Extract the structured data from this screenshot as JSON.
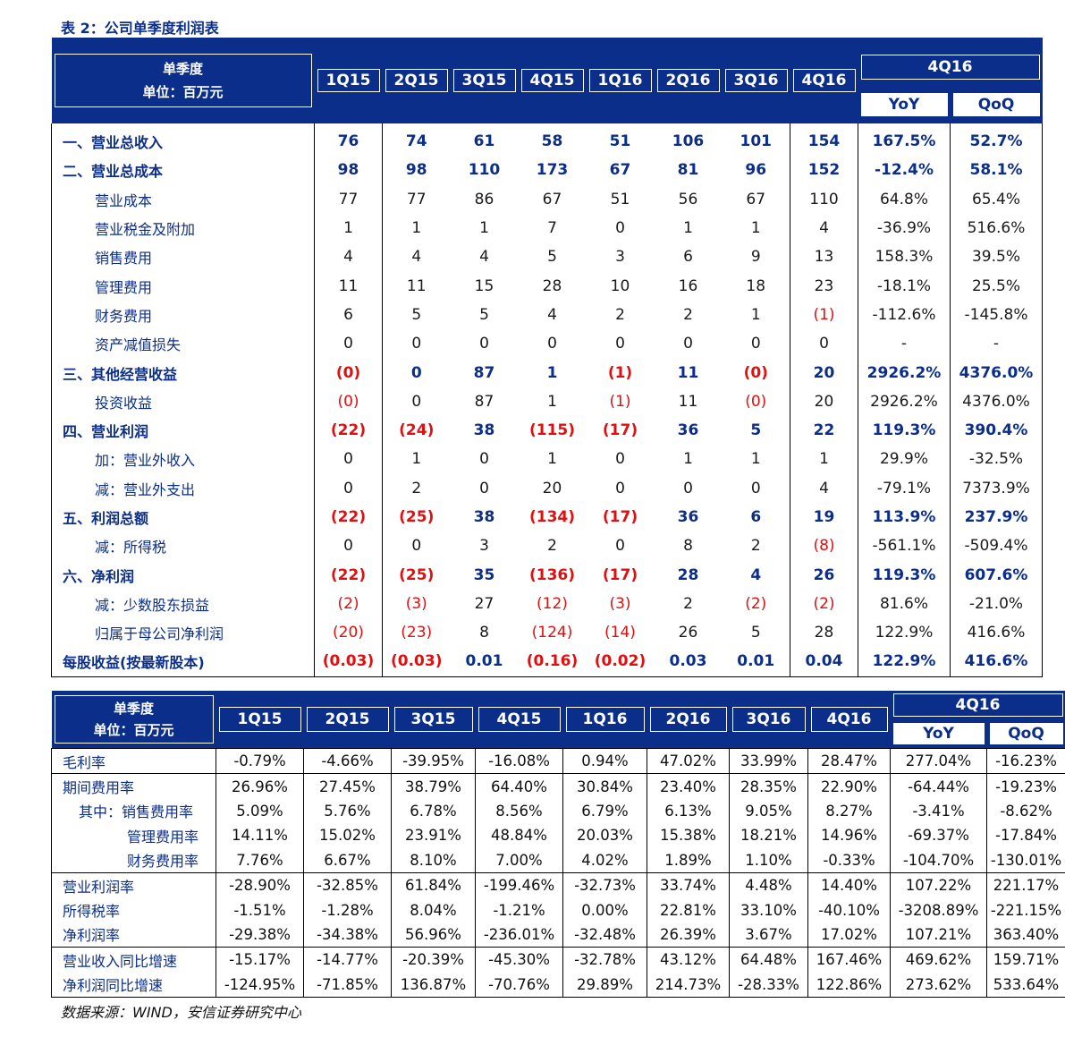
{
  "caption": "表 2：公司单季度利润表",
  "source": "数据来源：WIND，安信证券研究中心",
  "table1": {
    "header": {
      "label_line1": "单季度",
      "label_line2": "单位：百万元",
      "quarters": [
        "1Q15",
        "2Q15",
        "3Q15",
        "4Q15",
        "1Q16",
        "2Q16",
        "3Q16",
        "4Q16"
      ],
      "group": "4Q16",
      "yoy": "YoY",
      "qoq": "QoQ"
    },
    "rows": [
      {
        "label": "一、营业总收入",
        "bold": true,
        "indent": false,
        "values": [
          "76",
          "74",
          "61",
          "58",
          "51",
          "106",
          "101",
          "154"
        ],
        "yoy": "167.5%",
        "qoq": "52.7%"
      },
      {
        "label": "二、营业总成本",
        "bold": true,
        "indent": false,
        "values": [
          "98",
          "98",
          "110",
          "173",
          "67",
          "81",
          "96",
          "152"
        ],
        "yoy": "-12.4%",
        "qoq": "58.1%"
      },
      {
        "label": "营业成本",
        "bold": false,
        "indent": true,
        "values": [
          "77",
          "77",
          "86",
          "67",
          "51",
          "56",
          "67",
          "110"
        ],
        "yoy": "64.8%",
        "qoq": "65.4%"
      },
      {
        "label": "营业税金及附加",
        "bold": false,
        "indent": true,
        "values": [
          "1",
          "1",
          "1",
          "7",
          "0",
          "1",
          "1",
          "4"
        ],
        "yoy": "-36.9%",
        "qoq": "516.6%"
      },
      {
        "label": "销售费用",
        "bold": false,
        "indent": true,
        "values": [
          "4",
          "4",
          "4",
          "5",
          "3",
          "6",
          "9",
          "13"
        ],
        "yoy": "158.3%",
        "qoq": "39.5%"
      },
      {
        "label": "管理费用",
        "bold": false,
        "indent": true,
        "values": [
          "11",
          "11",
          "15",
          "28",
          "10",
          "16",
          "18",
          "23"
        ],
        "yoy": "-18.1%",
        "qoq": "25.5%"
      },
      {
        "label": "财务费用",
        "bold": false,
        "indent": true,
        "values": [
          "6",
          "5",
          "5",
          "4",
          "2",
          "2",
          "1",
          "(1)"
        ],
        "yoy": "-112.6%",
        "qoq": "-145.8%"
      },
      {
        "label": "资产减值损失",
        "bold": false,
        "indent": true,
        "values": [
          "0",
          "0",
          "0",
          "0",
          "0",
          "0",
          "0",
          "0"
        ],
        "yoy": "-",
        "qoq": "-"
      },
      {
        "label": "三、其他经营收益",
        "bold": true,
        "indent": false,
        "values": [
          "(0)",
          "0",
          "87",
          "1",
          "(1)",
          "11",
          "(0)",
          "20"
        ],
        "yoy": "2926.2%",
        "qoq": "4376.0%"
      },
      {
        "label": "投资收益",
        "bold": false,
        "indent": true,
        "values": [
          "(0)",
          "0",
          "87",
          "1",
          "(1)",
          "11",
          "(0)",
          "20"
        ],
        "yoy": "2926.2%",
        "qoq": "4376.0%"
      },
      {
        "label": "四、营业利润",
        "bold": true,
        "indent": false,
        "values": [
          "(22)",
          "(24)",
          "38",
          "(115)",
          "(17)",
          "36",
          "5",
          "22"
        ],
        "yoy": "119.3%",
        "qoq": "390.4%"
      },
      {
        "label": "加：营业外收入",
        "bold": false,
        "indent": true,
        "values": [
          "0",
          "1",
          "0",
          "1",
          "0",
          "1",
          "1",
          "1"
        ],
        "yoy": "29.9%",
        "qoq": "-32.5%"
      },
      {
        "label": "减：营业外支出",
        "bold": false,
        "indent": true,
        "values": [
          "0",
          "2",
          "0",
          "20",
          "0",
          "0",
          "0",
          "4"
        ],
        "yoy": "-79.1%",
        "qoq": "7373.9%"
      },
      {
        "label": "五、利润总额",
        "bold": true,
        "indent": false,
        "values": [
          "(22)",
          "(25)",
          "38",
          "(134)",
          "(17)",
          "36",
          "6",
          "19"
        ],
        "yoy": "113.9%",
        "qoq": "237.9%"
      },
      {
        "label": "减：所得税",
        "bold": false,
        "indent": true,
        "values": [
          "0",
          "0",
          "3",
          "2",
          "0",
          "8",
          "2",
          "(8)"
        ],
        "yoy": "-561.1%",
        "qoq": "-509.4%"
      },
      {
        "label": "六、净利润",
        "bold": true,
        "indent": false,
        "values": [
          "(22)",
          "(25)",
          "35",
          "(136)",
          "(17)",
          "28",
          "4",
          "26"
        ],
        "yoy": "119.3%",
        "qoq": "607.6%"
      },
      {
        "label": "减：少数股东损益",
        "bold": false,
        "indent": true,
        "values": [
          "(2)",
          "(3)",
          "27",
          "(12)",
          "(3)",
          "2",
          "(2)",
          "(2)"
        ],
        "yoy": "81.6%",
        "qoq": "-21.0%"
      },
      {
        "label": "归属于母公司净利润",
        "bold": false,
        "indent": true,
        "values": [
          "(20)",
          "(23)",
          "8",
          "(124)",
          "(14)",
          "26",
          "5",
          "28"
        ],
        "yoy": "122.9%",
        "qoq": "416.6%"
      },
      {
        "label": "每股收益(按最新股本)",
        "bold": true,
        "indent": false,
        "flush": true,
        "values": [
          "(0.03)",
          "(0.03)",
          "0.01",
          "(0.16)",
          "(0.02)",
          "0.03",
          "0.01",
          "0.04"
        ],
        "yoy": "122.9%",
        "qoq": "416.6%"
      }
    ]
  },
  "table2": {
    "header": {
      "label_line1": "单季度",
      "label_line2": "单位：百万元",
      "quarters": [
        "1Q15",
        "2Q15",
        "3Q15",
        "4Q15",
        "1Q16",
        "2Q16",
        "3Q16",
        "4Q16"
      ],
      "group": "4Q16",
      "yoy": "YoY",
      "qoq": "QoQ"
    },
    "rows": [
      {
        "label": "毛利率",
        "indent": 0,
        "group_start": true,
        "values": [
          "-0.79%",
          "-4.66%",
          "-39.95%",
          "-16.08%",
          "0.94%",
          "47.02%",
          "33.99%",
          "28.47%"
        ],
        "yoy": "277.04%",
        "qoq": "-16.23%"
      },
      {
        "label": "期间费用率",
        "indent": 0,
        "group_start": true,
        "values": [
          "26.96%",
          "27.45%",
          "38.79%",
          "64.40%",
          "30.84%",
          "23.40%",
          "28.35%",
          "22.90%"
        ],
        "yoy": "-64.44%",
        "qoq": "-19.23%"
      },
      {
        "label": "其中：销售费用率",
        "indent": 1,
        "group_start": false,
        "values": [
          "5.09%",
          "5.76%",
          "6.78%",
          "8.56%",
          "6.79%",
          "6.13%",
          "9.05%",
          "8.27%"
        ],
        "yoy": "-3.41%",
        "qoq": "-8.62%"
      },
      {
        "label": "管理费用率",
        "indent": 2,
        "group_start": false,
        "values": [
          "14.11%",
          "15.02%",
          "23.91%",
          "48.84%",
          "20.03%",
          "15.38%",
          "18.21%",
          "14.96%"
        ],
        "yoy": "-69.37%",
        "qoq": "-17.84%"
      },
      {
        "label": "财务费用率",
        "indent": 2,
        "group_start": false,
        "values": [
          "7.76%",
          "6.67%",
          "8.10%",
          "7.00%",
          "4.02%",
          "1.89%",
          "1.10%",
          "-0.33%"
        ],
        "yoy": "-104.70%",
        "qoq": "-130.01%"
      },
      {
        "label": "营业利润率",
        "indent": 0,
        "group_start": true,
        "values": [
          "-28.90%",
          "-32.85%",
          "61.84%",
          "-199.46%",
          "-32.73%",
          "33.74%",
          "4.48%",
          "14.40%"
        ],
        "yoy": "107.22%",
        "qoq": "221.17%"
      },
      {
        "label": "所得税率",
        "indent": 0,
        "group_start": false,
        "values": [
          "-1.51%",
          "-1.28%",
          "8.04%",
          "-1.21%",
          "0.00%",
          "22.81%",
          "33.10%",
          "-40.10%"
        ],
        "yoy": "-3208.89%",
        "qoq": "-221.15%"
      },
      {
        "label": "净利润率",
        "indent": 0,
        "group_start": false,
        "values": [
          "-29.38%",
          "-34.38%",
          "56.96%",
          "-236.01%",
          "-32.48%",
          "26.39%",
          "3.67%",
          "17.02%"
        ],
        "yoy": "107.21%",
        "qoq": "363.40%"
      },
      {
        "label": "营业收入同比增速",
        "indent": 0,
        "group_start": true,
        "values": [
          "-15.17%",
          "-14.77%",
          "-20.39%",
          "-45.30%",
          "-32.78%",
          "43.12%",
          "64.48%",
          "167.46%"
        ],
        "yoy": "469.62%",
        "qoq": "159.71%"
      },
      {
        "label": "净利润同比增速",
        "indent": 0,
        "group_start": false,
        "values": [
          "-124.95%",
          "-71.85%",
          "136.87%",
          "-70.76%",
          "29.89%",
          "214.73%",
          "-28.33%",
          "122.86%"
        ],
        "yoy": "273.62%",
        "qoq": "533.64%"
      }
    ]
  }
}
